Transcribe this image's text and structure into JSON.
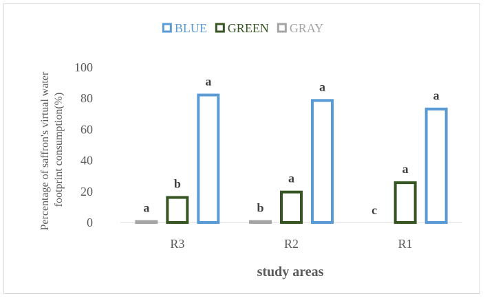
{
  "chart_data": {
    "type": "bar",
    "categories": [
      "R3",
      "R2",
      "R1"
    ],
    "series": [
      {
        "name": "GRAY",
        "color": "#a5a5a5",
        "values": [
          1.5,
          1.5,
          0
        ],
        "labels": [
          "a",
          "b",
          "c"
        ]
      },
      {
        "name": "GREEN",
        "color": "#375623",
        "values": [
          17,
          20.5,
          26.5
        ],
        "labels": [
          "b",
          "a",
          "a"
        ]
      },
      {
        "name": "BLUE",
        "color": "#5b9bd5",
        "values": [
          83,
          79.5,
          74
        ],
        "labels": [
          "a",
          "a",
          "a"
        ]
      }
    ],
    "legend_order": [
      "BLUE",
      "GREEN",
      "GRAY"
    ],
    "legend_position": "top",
    "xlabel": "study areas",
    "ylabel_lines": [
      "Percentage of saffron's virtual water",
      "footprint consumption(%)"
    ],
    "ylim": [
      0,
      100
    ],
    "yticks": [
      0,
      20,
      40,
      60,
      80,
      100
    ],
    "grid": false,
    "bar_style": "outline"
  }
}
